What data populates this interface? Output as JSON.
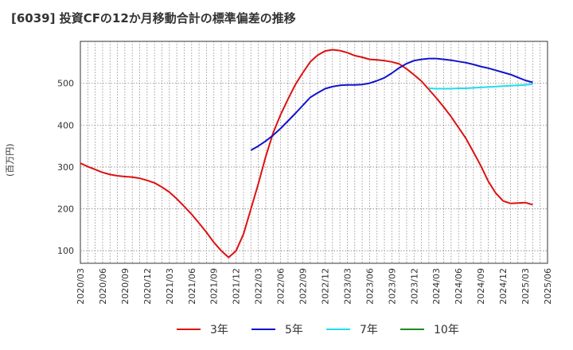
{
  "chart_data": {
    "type": "line",
    "title": "[6039]  投資CFの12か月移動合計の標準偏差の推移",
    "ylabel": "(百万円)",
    "xlabel": "",
    "ylim": [
      70,
      600
    ],
    "yticks": [
      100,
      200,
      300,
      400,
      500
    ],
    "xticks": [
      "2020/03",
      "2020/06",
      "2020/09",
      "2020/12",
      "2021/03",
      "2021/06",
      "2021/09",
      "2021/12",
      "2022/03",
      "2022/06",
      "2022/09",
      "2022/12",
      "2023/03",
      "2023/06",
      "2023/09",
      "2023/12",
      "2024/03",
      "2024/06",
      "2024/09",
      "2024/12",
      "2025/03",
      "2025/06"
    ],
    "grid": true,
    "legend_position": "bottom",
    "series": [
      {
        "name": "3年",
        "color": "#dd1111",
        "points": [
          [
            "2020/03",
            309
          ],
          [
            "2020/04",
            301
          ],
          [
            "2020/05",
            294
          ],
          [
            "2020/06",
            287
          ],
          [
            "2020/07",
            282
          ],
          [
            "2020/08",
            279
          ],
          [
            "2020/09",
            277
          ],
          [
            "2020/10",
            276
          ],
          [
            "2020/11",
            273
          ],
          [
            "2020/12",
            268
          ],
          [
            "2021/01",
            262
          ],
          [
            "2021/02",
            252
          ],
          [
            "2021/03",
            240
          ],
          [
            "2021/04",
            224
          ],
          [
            "2021/05",
            206
          ],
          [
            "2021/06",
            187
          ],
          [
            "2021/07",
            166
          ],
          [
            "2021/08",
            144
          ],
          [
            "2021/09",
            120
          ],
          [
            "2021/10",
            100
          ],
          [
            "2021/11",
            84
          ],
          [
            "2021/12",
            100
          ],
          [
            "2022/01",
            140
          ],
          [
            "2022/02",
            200
          ],
          [
            "2022/03",
            260
          ],
          [
            "2022/04",
            325
          ],
          [
            "2022/05",
            382
          ],
          [
            "2022/06",
            425
          ],
          [
            "2022/07",
            462
          ],
          [
            "2022/08",
            497
          ],
          [
            "2022/09",
            525
          ],
          [
            "2022/10",
            551
          ],
          [
            "2022/11",
            567
          ],
          [
            "2022/12",
            577
          ],
          [
            "2023/01",
            580
          ],
          [
            "2023/02",
            578
          ],
          [
            "2023/03",
            573
          ],
          [
            "2023/04",
            566
          ],
          [
            "2023/05",
            562
          ],
          [
            "2023/06",
            557
          ],
          [
            "2023/07",
            556
          ],
          [
            "2023/08",
            554
          ],
          [
            "2023/09",
            551
          ],
          [
            "2023/10",
            546
          ],
          [
            "2023/11",
            534
          ],
          [
            "2023/12",
            520
          ],
          [
            "2024/01",
            505
          ],
          [
            "2024/02",
            485
          ],
          [
            "2024/03",
            465
          ],
          [
            "2024/04",
            443
          ],
          [
            "2024/05",
            420
          ],
          [
            "2024/06",
            394
          ],
          [
            "2024/07",
            368
          ],
          [
            "2024/08",
            336
          ],
          [
            "2024/09",
            303
          ],
          [
            "2024/10",
            266
          ],
          [
            "2024/11",
            238
          ],
          [
            "2024/12",
            219
          ],
          [
            "2025/01",
            213
          ],
          [
            "2025/02",
            214
          ],
          [
            "2025/03",
            215
          ],
          [
            "2025/04",
            210
          ]
        ]
      },
      {
        "name": "5年",
        "color": "#1111cc",
        "points": [
          [
            "2022/02",
            340
          ],
          [
            "2022/03",
            350
          ],
          [
            "2022/04",
            362
          ],
          [
            "2022/05",
            376
          ],
          [
            "2022/06",
            392
          ],
          [
            "2022/07",
            410
          ],
          [
            "2022/08",
            428
          ],
          [
            "2022/09",
            447
          ],
          [
            "2022/10",
            466
          ],
          [
            "2022/11",
            477
          ],
          [
            "2022/12",
            487
          ],
          [
            "2023/01",
            492
          ],
          [
            "2023/02",
            495
          ],
          [
            "2023/03",
            496
          ],
          [
            "2023/04",
            496
          ],
          [
            "2023/05",
            497
          ],
          [
            "2023/06",
            500
          ],
          [
            "2023/07",
            506
          ],
          [
            "2023/08",
            513
          ],
          [
            "2023/09",
            524
          ],
          [
            "2023/10",
            537
          ],
          [
            "2023/11",
            547
          ],
          [
            "2023/12",
            554
          ],
          [
            "2024/01",
            557
          ],
          [
            "2024/02",
            559
          ],
          [
            "2024/03",
            559
          ],
          [
            "2024/04",
            557
          ],
          [
            "2024/05",
            555
          ],
          [
            "2024/06",
            552
          ],
          [
            "2024/07",
            549
          ],
          [
            "2024/08",
            545
          ],
          [
            "2024/09",
            540
          ],
          [
            "2024/10",
            536
          ],
          [
            "2024/11",
            531
          ],
          [
            "2024/12",
            526
          ],
          [
            "2025/01",
            521
          ],
          [
            "2025/02",
            514
          ],
          [
            "2025/03",
            507
          ],
          [
            "2025/04",
            502
          ]
        ]
      },
      {
        "name": "7年",
        "color": "#22ddee",
        "points": [
          [
            "2024/02",
            488
          ],
          [
            "2024/03",
            487
          ],
          [
            "2024/04",
            487
          ],
          [
            "2024/05",
            487
          ],
          [
            "2024/06",
            488
          ],
          [
            "2024/07",
            488
          ],
          [
            "2024/08",
            489
          ],
          [
            "2024/09",
            490
          ],
          [
            "2024/10",
            491
          ],
          [
            "2024/11",
            492
          ],
          [
            "2024/12",
            493
          ],
          [
            "2025/01",
            494
          ],
          [
            "2025/02",
            495
          ],
          [
            "2025/03",
            496
          ],
          [
            "2025/04",
            498
          ]
        ]
      },
      {
        "name": "10年",
        "color": "#228822",
        "points": []
      }
    ]
  }
}
